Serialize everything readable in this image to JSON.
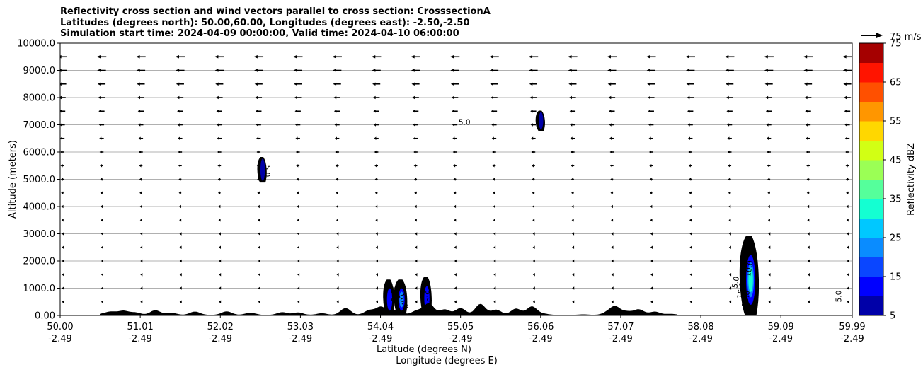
{
  "title_lines": [
    "Reflectivity cross section and wind vectors parallel to cross section: CrosssectionA",
    "Latitudes (degrees north): 50.00,60.00, Longitudes (degrees east): -2.50,-2.50",
    "Simulation start time: 2024-04-09 00:00:00, Valid time: 2024-04-10 06:00:00"
  ],
  "chart_data": {
    "type": "heatmap",
    "ylabel": "Altitude (meters)",
    "xlabel_lines": [
      "Latitude (degrees N)",
      "Longitude (degrees E)"
    ],
    "xlim": [
      50.0,
      59.99
    ],
    "ylim": [
      0,
      10000
    ],
    "grid": "horizontal",
    "x_ticks": [
      {
        "lat": "50.00",
        "lon": "-2.49",
        "value": 50.0
      },
      {
        "lat": "51.01",
        "lon": "-2.49",
        "value": 51.01
      },
      {
        "lat": "52.02",
        "lon": "-2.49",
        "value": 52.02
      },
      {
        "lat": "53.03",
        "lon": "-2.49",
        "value": 53.03
      },
      {
        "lat": "54.04",
        "lon": "-2.49",
        "value": 54.04
      },
      {
        "lat": "55.05",
        "lon": "-2.49",
        "value": 55.05
      },
      {
        "lat": "56.06",
        "lon": "-2.49",
        "value": 56.06
      },
      {
        "lat": "57.07",
        "lon": "-2.49",
        "value": 57.07
      },
      {
        "lat": "58.08",
        "lon": "-2.49",
        "value": 58.08
      },
      {
        "lat": "59.09",
        "lon": "-2.49",
        "value": 59.09
      },
      {
        "lat": "59.99",
        "lon": "-2.49",
        "value": 59.99
      }
    ],
    "y_ticks": [
      "0.00",
      "1000.0",
      "2000.0",
      "3000.0",
      "4000.0",
      "5000.0",
      "6000.0",
      "7000.0",
      "8000.0",
      "9000.0",
      "10000.0"
    ],
    "y_tick_values": [
      0,
      1000,
      2000,
      3000,
      4000,
      5000,
      6000,
      7000,
      8000,
      9000,
      10000
    ],
    "wind_vectors": {
      "direction": "westward (toward lower latitude)",
      "reference_label": "75 m/s",
      "reference_speed": 75,
      "levels_m": [
        500,
        1000,
        1500,
        2000,
        2500,
        3000,
        3500,
        4000,
        4500,
        5000,
        5500,
        6000,
        6500,
        7000,
        7500,
        8000,
        8500,
        9000,
        9500
      ],
      "speed_by_level_ms": [
        3,
        3,
        3,
        3,
        4,
        4,
        6,
        7,
        9,
        10,
        12,
        14,
        16,
        18,
        21,
        24,
        28,
        31,
        34
      ]
    },
    "reflectivity_cells": [
      {
        "lat": 52.55,
        "alt_bottom": 4900,
        "alt_top": 5800,
        "max_dbz": 10
      },
      {
        "lat": 54.15,
        "alt_bottom": 0,
        "alt_top": 1300,
        "max_dbz": 15
      },
      {
        "lat": 54.3,
        "alt_bottom": 0,
        "alt_top": 1300,
        "max_dbz": 20
      },
      {
        "lat": 54.62,
        "alt_bottom": 0,
        "alt_top": 1400,
        "max_dbz": 15
      },
      {
        "lat": 56.06,
        "alt_bottom": 6800,
        "alt_top": 7500,
        "max_dbz": 10
      },
      {
        "lat": 58.7,
        "alt_bottom": 0,
        "alt_top": 2900,
        "max_dbz": 35
      }
    ],
    "contour_labels": [
      "5.0",
      "5.0",
      "15.0",
      "10.0",
      "5.0",
      "5.0",
      "15.0",
      "10.0",
      "20.0",
      "5.0"
    ],
    "colorbar": {
      "label": "Reflectivity dBZ",
      "tick_labels": [
        "5",
        "15",
        "25",
        "35",
        "45",
        "55",
        "65",
        "75"
      ],
      "tick_values": [
        5,
        15,
        25,
        35,
        45,
        55,
        65,
        75
      ],
      "range": [
        5,
        75
      ],
      "bounds": [
        5,
        10,
        15,
        20,
        25,
        30,
        35,
        40,
        45,
        50,
        55,
        60,
        65,
        70,
        75
      ],
      "colors": [
        "#0000a8",
        "#0000ff",
        "#0a46ff",
        "#0a8cff",
        "#00c8ff",
        "#14ffd2",
        "#55ff9b",
        "#9bff55",
        "#d2ff14",
        "#ffd700",
        "#ff9600",
        "#ff5000",
        "#ff1400",
        "#a50000"
      ]
    },
    "terrain_color": "#000000"
  }
}
